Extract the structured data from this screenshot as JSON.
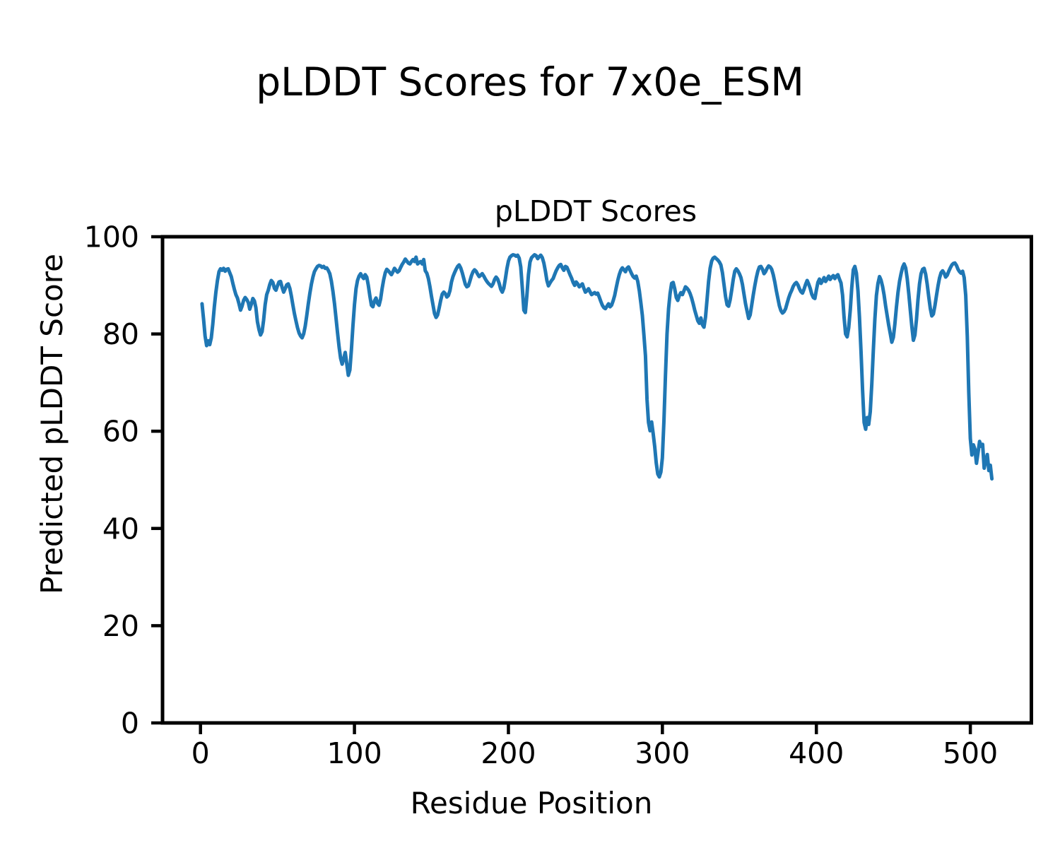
{
  "figure": {
    "suptitle": "pLDDT Scores for 7x0e_ESM",
    "axes_title": "pLDDT Scores",
    "xlabel": "Residue Position",
    "ylabel": "Predicted pLDDT Score"
  },
  "colors": {
    "line": "#1f77b4",
    "axes": "#000000",
    "background": "#ffffff"
  },
  "chart_data": {
    "type": "line",
    "title": "pLDDT Scores",
    "xlabel": "Residue Position",
    "ylabel": "Predicted pLDDT Score",
    "xlim": [
      -24.65,
      539.65
    ],
    "ylim": [
      0,
      100
    ],
    "x_ticks": [
      0,
      100,
      200,
      300,
      400,
      500
    ],
    "y_ticks": [
      0,
      20,
      40,
      60,
      80,
      100
    ],
    "grid": false,
    "legend_position": "none",
    "x_start": 1,
    "x_step": 1,
    "series": [
      {
        "name": "pLDDT",
        "values": [
          86.2,
          83.0,
          79.6,
          77.6,
          78.6,
          77.8,
          79.2,
          82.0,
          85.6,
          88.6,
          91.0,
          92.8,
          93.4,
          93.1,
          93.5,
          92.9,
          93.3,
          93.4,
          92.6,
          91.8,
          90.4,
          89.2,
          88.1,
          87.4,
          86.2,
          84.9,
          85.7,
          86.9,
          87.5,
          87.1,
          86.5,
          85.1,
          86.1,
          87.3,
          86.8,
          85.4,
          82.5,
          80.9,
          79.8,
          80.5,
          82.8,
          86.0,
          88.1,
          89.0,
          90.2,
          91.0,
          90.6,
          89.4,
          89.0,
          89.9,
          90.7,
          90.8,
          89.6,
          88.6,
          89.3,
          90.1,
          90.3,
          89.4,
          87.8,
          86.0,
          84.2,
          82.7,
          81.3,
          80.2,
          79.6,
          79.2,
          80.0,
          81.6,
          83.7,
          86.1,
          88.3,
          90.2,
          91.7,
          92.8,
          93.4,
          93.9,
          94.1,
          94.0,
          93.7,
          93.9,
          93.5,
          93.6,
          93.1,
          92.4,
          90.9,
          88.8,
          86.3,
          83.4,
          80.3,
          77.4,
          75.0,
          73.8,
          74.9,
          76.2,
          73.9,
          71.5,
          72.6,
          76.6,
          81.6,
          86.0,
          89.3,
          91.0,
          91.9,
          92.4,
          91.8,
          91.4,
          92.2,
          91.7,
          90.0,
          87.8,
          85.9,
          85.6,
          86.8,
          87.4,
          86.3,
          85.9,
          87.2,
          89.4,
          91.2,
          92.6,
          93.3,
          93.0,
          92.6,
          92.2,
          92.8,
          93.5,
          93.1,
          92.7,
          93.0,
          93.7,
          94.3,
          94.8,
          95.4,
          95.0,
          94.6,
          94.4,
          94.9,
          95.3,
          94.9,
          95.8,
          94.4,
          94.7,
          94.9,
          94.4,
          95.3,
          93.0,
          92.5,
          91.4,
          89.8,
          87.8,
          86.0,
          84.2,
          83.4,
          83.9,
          85.3,
          86.9,
          88.2,
          88.6,
          88.3,
          87.6,
          87.9,
          88.9,
          90.7,
          91.8,
          92.6,
          93.3,
          93.9,
          94.2,
          93.6,
          92.6,
          91.4,
          90.2,
          89.7,
          89.9,
          90.9,
          92.0,
          92.8,
          93.2,
          92.9,
          92.3,
          91.8,
          92.1,
          92.4,
          91.9,
          91.3,
          90.8,
          90.4,
          90.1,
          89.8,
          90.3,
          91.2,
          91.7,
          91.3,
          90.4,
          89.2,
          88.6,
          89.4,
          91.3,
          93.4,
          95.0,
          95.8,
          96.1,
          96.3,
          96.2,
          96.0,
          96.2,
          95.6,
          93.8,
          89.5,
          84.9,
          84.4,
          87.9,
          92.2,
          94.8,
          95.7,
          96.0,
          96.3,
          96.1,
          95.5,
          95.9,
          96.2,
          95.7,
          94.6,
          92.9,
          91.0,
          89.9,
          90.5,
          91.0,
          91.4,
          92.2,
          93.0,
          93.6,
          94.1,
          94.3,
          93.6,
          93.1,
          93.9,
          93.7,
          93.0,
          92.2,
          91.5,
          90.6,
          90.0,
          90.7,
          90.3,
          89.7,
          90.0,
          90.3,
          89.4,
          88.6,
          88.9,
          89.3,
          88.7,
          88.1,
          88.3,
          88.5,
          88.2,
          88.4,
          87.6,
          86.7,
          85.9,
          85.4,
          85.2,
          85.7,
          86.2,
          85.6,
          85.9,
          86.8,
          87.9,
          89.5,
          91.0,
          92.2,
          93.1,
          93.6,
          93.2,
          92.8,
          93.5,
          93.8,
          93.1,
          92.4,
          91.8,
          91.5,
          91.9,
          90.8,
          88.9,
          86.5,
          83.8,
          79.8,
          75.5,
          66.5,
          61.8,
          60.1,
          61.9,
          59.5,
          56.8,
          53.5,
          51.2,
          50.6,
          51.6,
          54.5,
          62.0,
          71.5,
          80.0,
          85.2,
          88.3,
          90.4,
          90.6,
          89.3,
          87.5,
          86.9,
          87.9,
          88.5,
          88.1,
          88.9,
          89.7,
          89.4,
          89.0,
          88.3,
          87.4,
          86.2,
          84.9,
          83.8,
          82.7,
          82.2,
          83.3,
          81.9,
          81.4,
          83.5,
          87.0,
          90.8,
          93.5,
          95.0,
          95.6,
          95.8,
          95.5,
          95.2,
          94.8,
          94.2,
          92.6,
          90.2,
          87.7,
          86.0,
          85.7,
          87.0,
          89.0,
          91.2,
          92.9,
          93.4,
          93.0,
          92.4,
          91.6,
          90.2,
          88.2,
          86.2,
          84.7,
          83.2,
          83.9,
          85.9,
          88.0,
          89.9,
          91.6,
          92.9,
          93.8,
          93.9,
          93.3,
          92.4,
          92.8,
          93.5,
          94.0,
          93.8,
          93.3,
          92.2,
          90.7,
          88.9,
          87.3,
          85.8,
          84.8,
          84.3,
          84.6,
          85.2,
          86.3,
          87.4,
          88.3,
          89.0,
          89.8,
          90.3,
          90.6,
          90.1,
          89.3,
          88.7,
          88.4,
          89.2,
          90.2,
          91.0,
          90.3,
          89.4,
          88.2,
          87.5,
          87.3,
          89.0,
          90.6,
          91.3,
          90.4,
          90.9,
          91.6,
          90.8,
          91.3,
          91.9,
          91.2,
          91.7,
          92.0,
          91.4,
          91.9,
          92.2,
          91.3,
          90.5,
          88.0,
          83.5,
          80.0,
          79.4,
          81.3,
          84.9,
          89.5,
          93.2,
          93.9,
          92.5,
          88.9,
          83.5,
          76.5,
          68.5,
          61.8,
          60.4,
          62.8,
          61.4,
          64.0,
          69.8,
          76.5,
          83.0,
          87.9,
          90.4,
          91.8,
          91.1,
          89.8,
          88.0,
          85.7,
          83.7,
          81.8,
          80.1,
          78.3,
          79.3,
          82.0,
          85.5,
          88.5,
          90.8,
          92.4,
          93.7,
          94.4,
          93.6,
          91.4,
          88.3,
          85.0,
          81.6,
          78.7,
          79.8,
          83.0,
          87.0,
          90.3,
          92.4,
          93.3,
          93.5,
          92.3,
          90.2,
          87.6,
          85.2,
          83.7,
          84.1,
          85.8,
          87.9,
          89.9,
          91.5,
          92.6,
          93.0,
          92.5,
          91.7,
          92.1,
          92.9,
          93.6,
          94.2,
          94.5,
          94.6,
          94.1,
          93.3,
          92.8,
          92.5,
          92.9,
          91.6,
          87.9,
          79.5,
          68.0,
          58.5,
          55.1,
          57.2,
          56.3,
          53.4,
          55.6,
          57.9,
          56.9,
          57.3,
          52.4,
          54.0,
          55.2,
          51.9,
          53.0,
          50.2
        ]
      }
    ]
  }
}
